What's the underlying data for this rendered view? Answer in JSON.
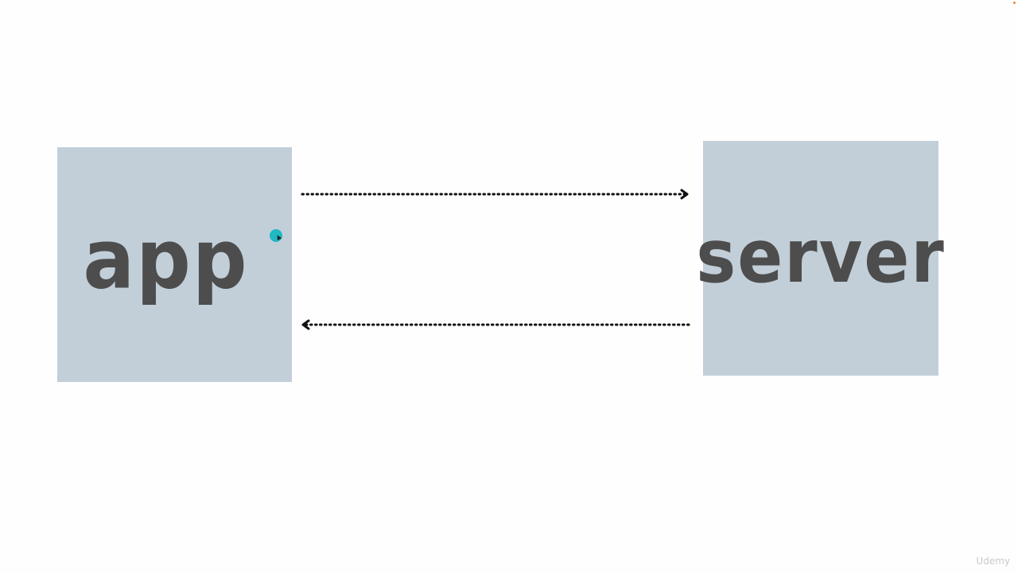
{
  "diagram": {
    "nodes": [
      {
        "id": "app",
        "label": "app"
      },
      {
        "id": "server",
        "label": "server"
      }
    ],
    "edges": [
      {
        "from": "app",
        "to": "server",
        "style": "dotted"
      },
      {
        "from": "server",
        "to": "app",
        "style": "dotted"
      }
    ]
  },
  "colors": {
    "box_fill": "#c2cfd9",
    "label_color": "#4d4d4d",
    "arrow_color": "#111111",
    "cursor_color": "#1fb8c4"
  },
  "watermark": "Udemy"
}
